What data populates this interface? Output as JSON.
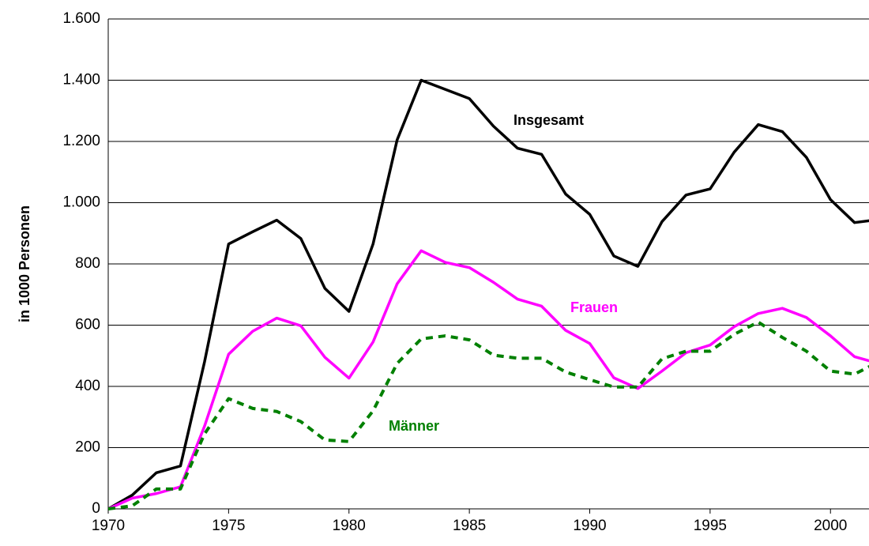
{
  "chart_data": {
    "type": "line",
    "y_label": "in 1000 Personen",
    "x": [
      1970,
      1971,
      1972,
      1973,
      1974,
      1975,
      1976,
      1977,
      1978,
      1979,
      1980,
      1981,
      1982,
      1983,
      1984,
      1985,
      1986,
      1987,
      1988,
      1989,
      1990,
      1991,
      1992,
      1993,
      1994,
      1995,
      1996,
      1997,
      1998,
      1999,
      2000,
      2001,
      2002
    ],
    "series": [
      {
        "name": "Insgesamt",
        "color": "#000000",
        "line_style": "solid",
        "values": [
          0,
          45,
          118,
          140,
          480,
          865,
          905,
          943,
          883,
          720,
          645,
          865,
          1205,
          1400,
          1370,
          1340,
          1250,
          1178,
          1158,
          1028,
          962,
          826,
          792,
          938,
          1025,
          1045,
          1165,
          1255,
          1232,
          1148,
          1010,
          935,
          945
        ]
      },
      {
        "name": "Frauen",
        "color": "#ff00ff",
        "line_style": "solid",
        "values": [
          0,
          35,
          50,
          72,
          270,
          505,
          580,
          623,
          598,
          495,
          427,
          545,
          735,
          843,
          805,
          788,
          740,
          685,
          662,
          583,
          540,
          428,
          393,
          450,
          510,
          535,
          595,
          638,
          655,
          625,
          565,
          497,
          475
        ]
      },
      {
        "name": "Männer",
        "color": "#008000",
        "line_style": "dashed",
        "values": [
          0,
          10,
          65,
          65,
          245,
          360,
          328,
          318,
          285,
          225,
          220,
          320,
          475,
          555,
          565,
          552,
          502,
          492,
          492,
          447,
          422,
          398,
          398,
          490,
          515,
          515,
          570,
          610,
          560,
          515,
          450,
          440,
          480
        ]
      }
    ],
    "xlim": [
      1970,
      2001.6
    ],
    "xticks": [
      1970,
      1975,
      1980,
      1985,
      1990,
      1995,
      2000
    ],
    "ylim": [
      0,
      1600
    ],
    "yticks": [
      0,
      200,
      400,
      600,
      800,
      {
        "value": 1000,
        "label": "1.000"
      },
      {
        "value": 1200,
        "label": "1.200"
      },
      {
        "value": 1400,
        "label": "1.400"
      },
      {
        "value": 1600,
        "label": "1.600"
      }
    ],
    "grid": true
  }
}
